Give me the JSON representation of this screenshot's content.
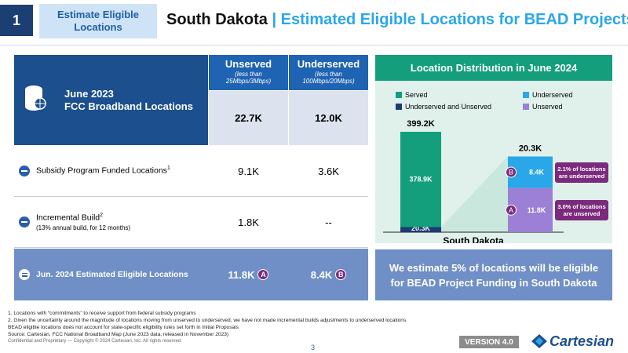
{
  "header": {
    "badge": "1",
    "section": "Estimate Eligible Locations",
    "title_main": "South Dakota",
    "title_sep": "|",
    "title_sub": "Estimated Eligible Locations for BEAD Projects"
  },
  "table": {
    "corner": [
      "June 2023",
      "FCC Broadband Locations"
    ],
    "columns": [
      {
        "title": "Unserved",
        "sub": "(less than 25Mbps/3Mbps)"
      },
      {
        "title": "Underserved",
        "sub": "(less than 100Mbps/20Mbps)"
      }
    ],
    "base_values": [
      "22.7K",
      "12.0K"
    ],
    "rows": [
      {
        "label": "Subsidy Program Funded Locations",
        "sup": "1",
        "values": [
          "9.1K",
          "3.6K"
        ]
      },
      {
        "label": "Incremental Build",
        "sup": "2",
        "note": "(13% annual build, for 12 months)",
        "values": [
          "1.8K",
          "--"
        ]
      }
    ],
    "total": {
      "label": "Jun. 2024 Estimated Eligible Locations",
      "values": [
        "11.8K",
        "8.4K"
      ],
      "badges": [
        "A",
        "B"
      ]
    }
  },
  "chart": {
    "type": "bar",
    "title": "Location Distribution in June 2024",
    "xlabel": "South Dakota",
    "series": [
      {
        "name": "Served",
        "color": "#139e7c",
        "values": [
          378.9,
          null
        ],
        "value_labels": [
          "378.9K",
          null
        ]
      },
      {
        "name": "Underserved",
        "color": "#2aa7e8",
        "values": [
          null,
          8.4
        ],
        "value_labels": [
          null,
          "8.4K"
        ]
      },
      {
        "name": "Underserved and Unserved",
        "color": "#1e3a72",
        "values": [
          20.3,
          null
        ],
        "value_labels": [
          "20.3K",
          null
        ]
      },
      {
        "name": "Unserved",
        "color": "#9b80d6",
        "values": [
          null,
          11.8
        ],
        "value_labels": [
          null,
          "11.8K"
        ]
      }
    ],
    "totals": [
      399.2,
      20.3
    ],
    "total_labels": [
      "399.2K",
      "20.3K"
    ],
    "annotations": [
      {
        "text": "2.1% of locations are underserved",
        "badge": "B"
      },
      {
        "text": "3.0% of locations are unserved",
        "badge": "A"
      }
    ]
  },
  "callout": "We estimate 5% of locations will be eligible for BEAD Project Funding in South Dakota",
  "footer": {
    "notes": [
      "1. Locations with “commitments” to receive support from federal subsidy programs",
      "2. Given the uncertainty around the magnitude of locations moving from unserved to underserved, we have not made incremental builds adjustments to underserved locations",
      "BEAD eligible locations does not account for state-specific eligibility rules set forth in Initial Proposals",
      "Source: Cartesian, FCC National Broadband Map (June 2023 data, released in November 2023)"
    ],
    "confidential": "Confidential and Proprietary — Copyright © 2024 Cartesian, Inc. All rights reserved.",
    "page": "3",
    "version": "VERSION 4.0",
    "logo": "Cartesian"
  }
}
